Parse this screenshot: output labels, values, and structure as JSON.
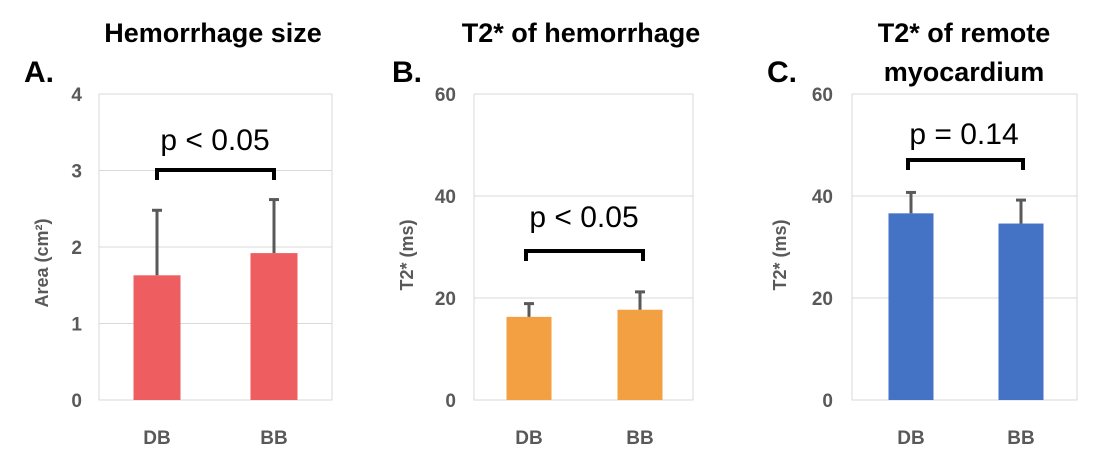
{
  "chart_data": [
    {
      "type": "bar",
      "panel": "A.",
      "title_lines": [
        "Hemorrhage size"
      ],
      "ylabel": "Area (cm²)",
      "categories": [
        "DB",
        "BB"
      ],
      "values": [
        1.63,
        1.92
      ],
      "errors": [
        0.85,
        0.7
      ],
      "ylim": [
        0,
        4
      ],
      "yticks": [
        0,
        1,
        2,
        3,
        4
      ],
      "bar_color": "#EE5E60",
      "pvalue": "p < 0.05"
    },
    {
      "type": "bar",
      "panel": "B.",
      "title_lines": [
        "T2* of hemorrhage"
      ],
      "ylabel": "T2* (ms)",
      "categories": [
        "DB",
        "BB"
      ],
      "values": [
        16.3,
        17.7
      ],
      "errors": [
        2.6,
        3.5
      ],
      "ylim": [
        0,
        60
      ],
      "yticks": [
        0,
        20,
        40,
        60
      ],
      "bar_color": "#F2A041",
      "pvalue": "p < 0.05"
    },
    {
      "type": "bar",
      "panel": "C.",
      "title_lines": [
        "T2* of remote",
        "myocardium"
      ],
      "ylabel": "T2* (ms)",
      "categories": [
        "DB",
        "BB"
      ],
      "values": [
        36.6,
        34.6
      ],
      "errors": [
        4.1,
        4.6
      ],
      "ylim": [
        0,
        60
      ],
      "yticks": [
        0,
        20,
        40,
        60
      ],
      "bar_color": "#4472C4",
      "pvalue": "p = 0.14"
    }
  ],
  "style": {
    "error_bar_color": "#595959",
    "gridline_color": "#D9D9D9",
    "bracket_color": "#000000"
  }
}
